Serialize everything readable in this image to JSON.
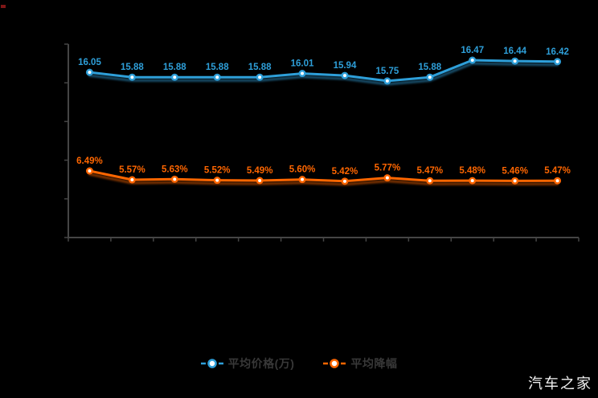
{
  "page": {
    "background_color": "#000000",
    "watermark": "汽车之家"
  },
  "legend": {
    "position": "bottom",
    "items": [
      {
        "label": "平均价格(万)",
        "color": "#2e9fd9"
      },
      {
        "label": "平均降幅",
        "color": "#ff6600"
      }
    ]
  },
  "chart_data": {
    "type": "line",
    "title": "",
    "xlabel": "",
    "ylabel": "",
    "x_tick_labels": [],
    "grid": false,
    "legend_position": "bottom",
    "axis_color": "#454545",
    "series": [
      {
        "name": "平均价格(万)",
        "color": "#2e9fd9",
        "values": [
          16.05,
          15.88,
          15.88,
          15.88,
          15.88,
          16.01,
          15.94,
          15.75,
          15.88,
          16.47,
          16.44,
          16.42
        ],
        "point_labels": [
          "16.05",
          "15.88",
          "15.88",
          "15.88",
          "15.88",
          "16.01",
          "15.94",
          "15.75",
          "15.88",
          "16.47",
          "16.44",
          "16.42"
        ]
      },
      {
        "name": "平均降幅",
        "color": "#ff6600",
        "values": [
          6.49,
          5.57,
          5.63,
          5.52,
          5.49,
          5.6,
          5.42,
          5.77,
          5.47,
          5.48,
          5.46,
          5.47
        ],
        "point_labels": [
          "6.49%",
          "5.57%",
          "5.63%",
          "5.52%",
          "5.49%",
          "5.60%",
          "5.42%",
          "5.77%",
          "5.47%",
          "5.48%",
          "5.46%",
          "5.47%"
        ]
      }
    ]
  }
}
